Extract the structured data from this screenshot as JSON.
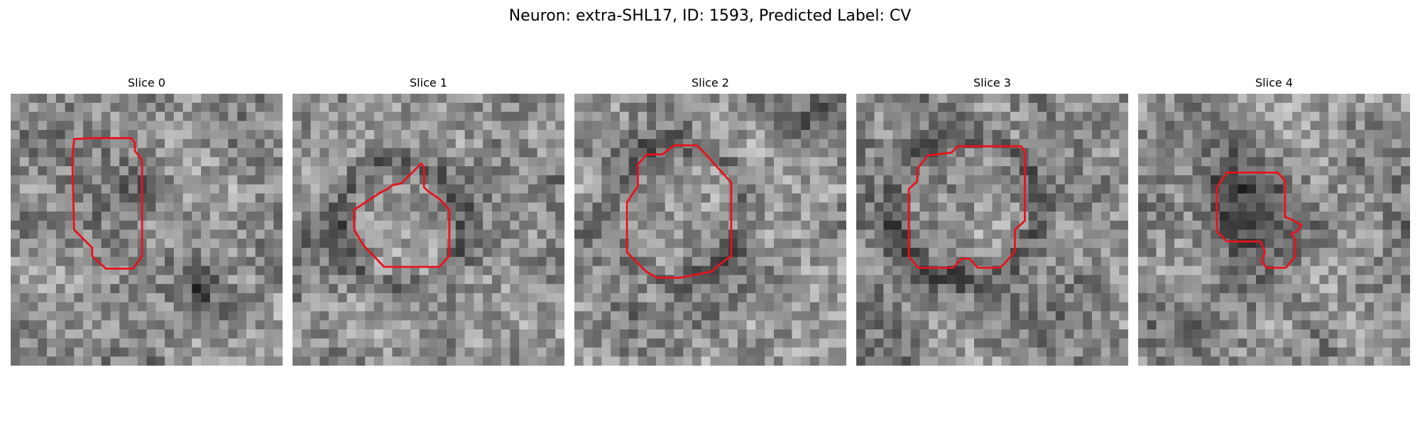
{
  "figure": {
    "title": "Neuron: extra-SHL17, ID: 1593, Predicted Label: CV"
  },
  "panels": [
    {
      "title": "Slice 0"
    },
    {
      "title": "Slice 1"
    },
    {
      "title": "Slice 2"
    },
    {
      "title": "Slice 3"
    },
    {
      "title": "Slice 4"
    }
  ],
  "colors": {
    "contour": "#e8131b",
    "background": "#ffffff"
  }
}
